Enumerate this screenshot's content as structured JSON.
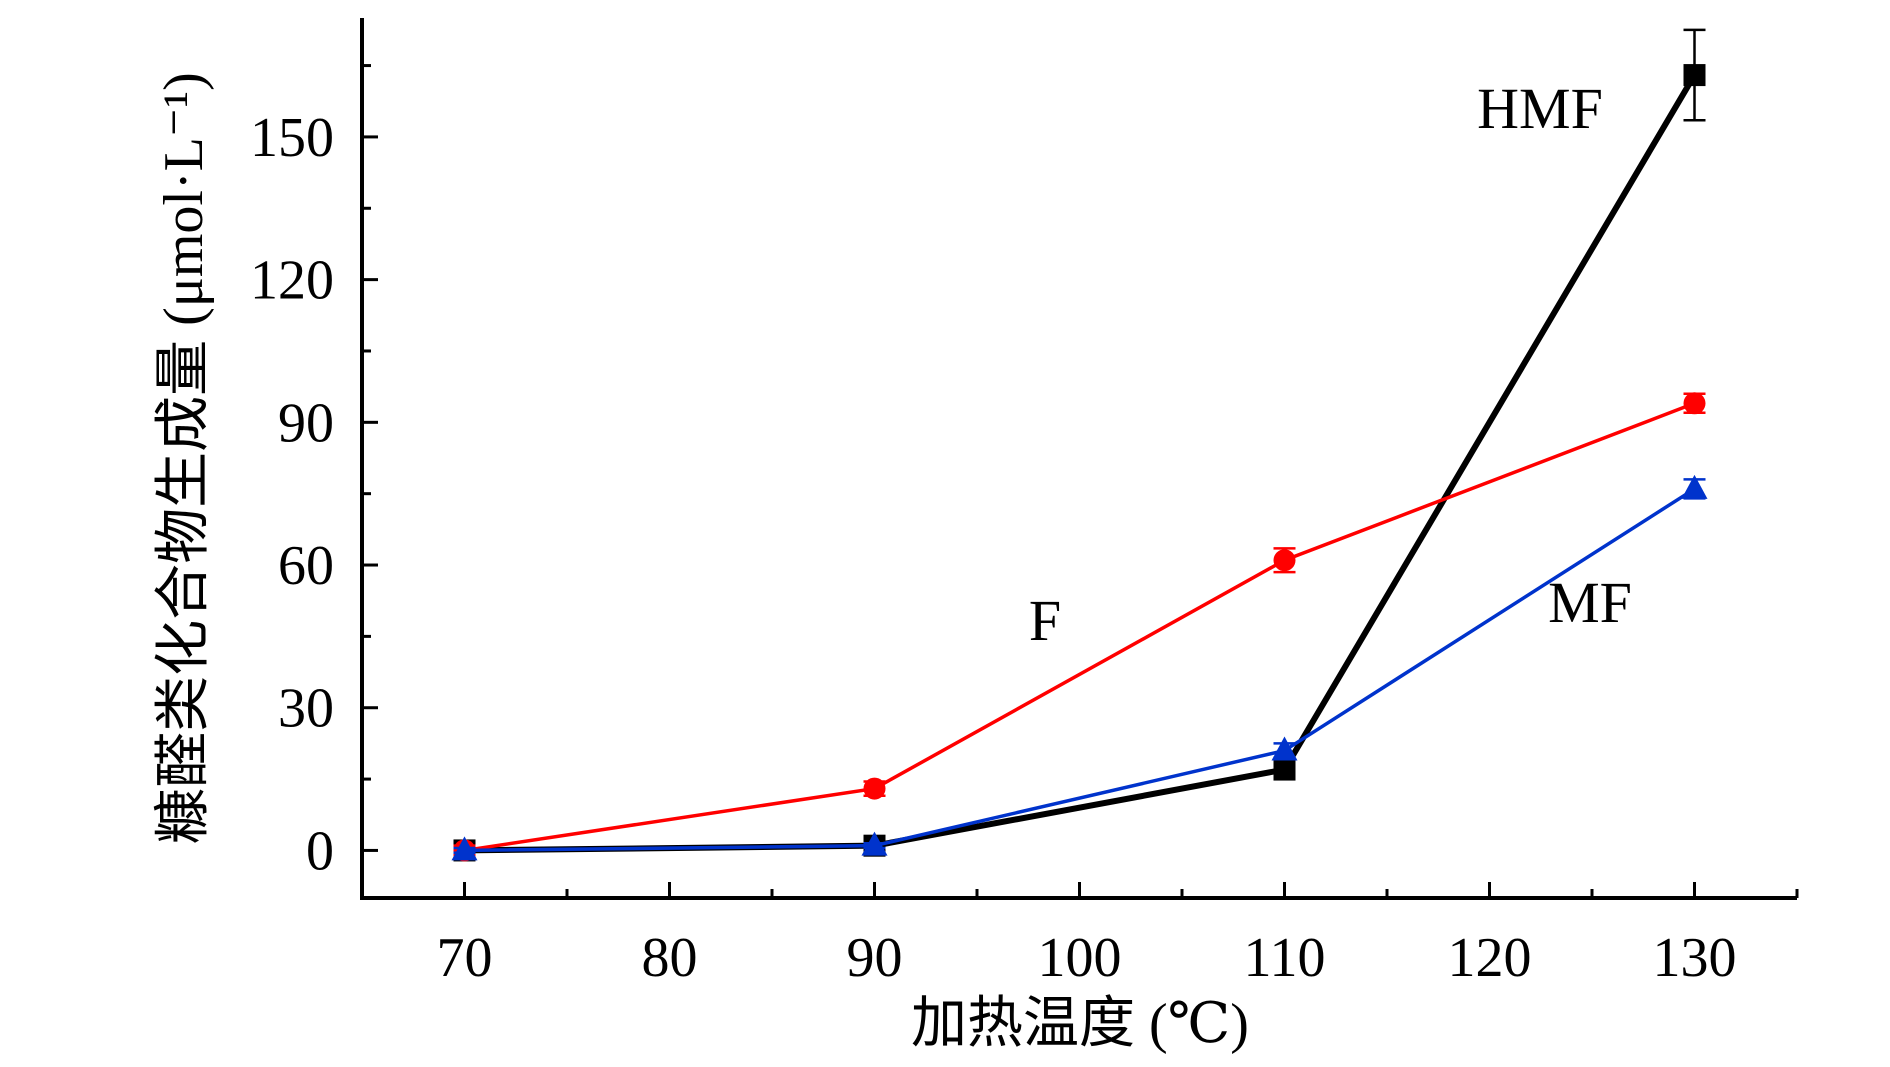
{
  "chart_data": {
    "type": "line",
    "title": "",
    "xlabel": "加热温度 (℃)",
    "ylabel": "糠醛类化合物生成量 (μmol·L⁻¹)",
    "xlim": [
      65,
      135
    ],
    "ylim": [
      -10,
      175
    ],
    "xticks": [
      70,
      80,
      90,
      100,
      110,
      120,
      130
    ],
    "yticks": [
      0,
      30,
      60,
      90,
      120,
      150
    ],
    "grid": false,
    "legend": "none",
    "series": [
      {
        "name": "HMF",
        "color": "#000000",
        "marker": "square",
        "x": [
          70,
          90,
          110,
          130
        ],
        "y": [
          0,
          1,
          17,
          163
        ],
        "err": [
          0.5,
          0.5,
          1.5,
          9.5
        ]
      },
      {
        "name": "F",
        "color": "#ff0000",
        "marker": "circle",
        "x": [
          70,
          90,
          110,
          130
        ],
        "y": [
          0,
          13,
          61,
          94
        ],
        "err": [
          1,
          1.5,
          2.5,
          2
        ]
      },
      {
        "name": "MF",
        "color": "#0033cc",
        "marker": "triangle",
        "x": [
          70,
          90,
          110,
          130
        ],
        "y": [
          0,
          1,
          21,
          76
        ],
        "err": [
          0.5,
          0.5,
          1.5,
          2
        ]
      }
    ]
  }
}
